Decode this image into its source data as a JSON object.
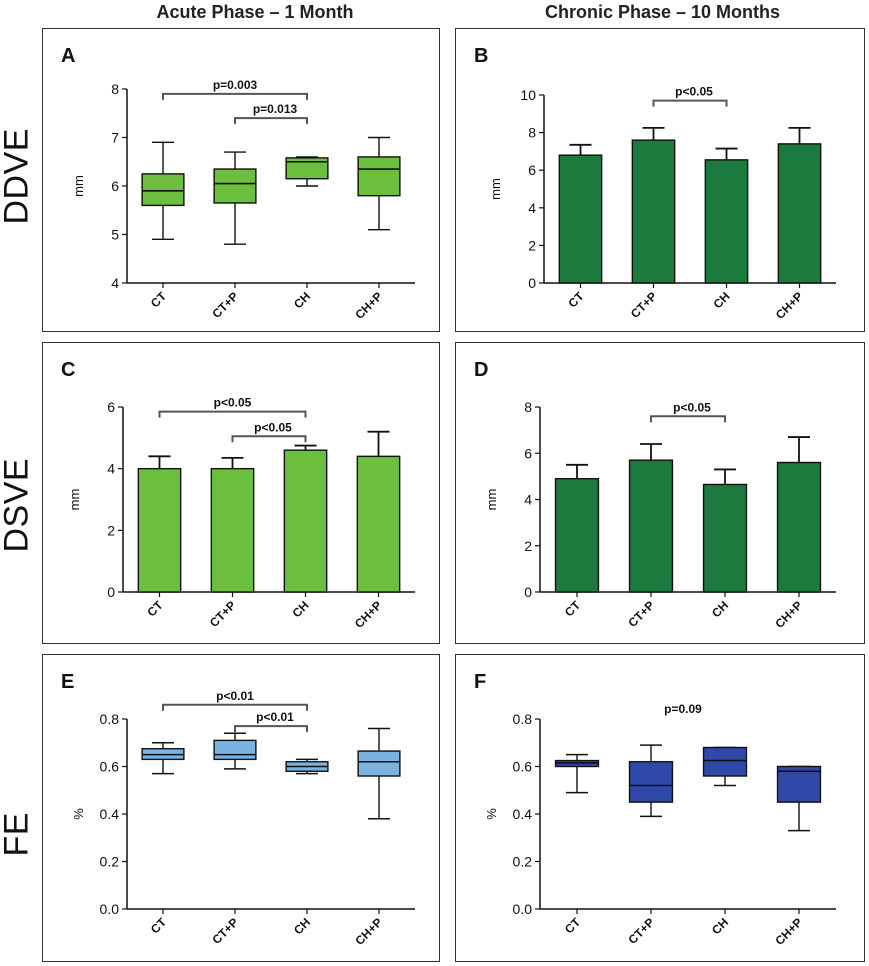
{
  "column_titles": [
    "Acute Phase – 1 Month",
    "Chronic Phase – 10 Months"
  ],
  "row_labels": [
    "DDVE",
    "DSVE",
    "FE"
  ],
  "colors": {
    "light_green": "#6cbf3c",
    "dark_green": "#1d7a3e",
    "light_blue": "#7ab3e0",
    "dark_blue": "#2e49a8",
    "axis": "#111111",
    "bracket": "#555555"
  },
  "chart_data": [
    {
      "panel": "A",
      "type": "box",
      "ylabel": "mm",
      "ylim": [
        4,
        8
      ],
      "yticks": [
        4,
        5,
        6,
        7,
        8
      ],
      "categories": [
        "CT",
        "CT+P",
        "CH",
        "CH+P"
      ],
      "color": "light_green",
      "boxes": [
        {
          "min": 4.9,
          "q1": 5.6,
          "median": 5.9,
          "q3": 6.25,
          "max": 6.9
        },
        {
          "min": 4.8,
          "q1": 5.65,
          "median": 6.05,
          "q3": 6.35,
          "max": 6.7
        },
        {
          "min": 6.0,
          "q1": 6.15,
          "median": 6.5,
          "q3": 6.58,
          "max": 6.6
        },
        {
          "min": 5.1,
          "q1": 5.8,
          "median": 6.35,
          "q3": 6.6,
          "max": 7.0
        }
      ],
      "brackets": [
        {
          "from": 0,
          "to": 2,
          "label": "p=0.003",
          "y": 7.9
        },
        {
          "from": 1,
          "to": 2,
          "label": "p=0.013",
          "y": 7.4
        }
      ]
    },
    {
      "panel": "B",
      "type": "bar",
      "ylabel": "mm",
      "ylim": [
        0,
        10
      ],
      "yticks": [
        0,
        2,
        4,
        6,
        8,
        10
      ],
      "categories": [
        "CT",
        "CT+P",
        "CH",
        "CH+P"
      ],
      "color": "dark_green",
      "values": [
        6.8,
        7.6,
        6.55,
        7.4
      ],
      "errors": [
        0.55,
        0.65,
        0.6,
        0.85
      ],
      "brackets": [
        {
          "from": 1,
          "to": 2,
          "label": "p<0.05",
          "y": 9.7
        }
      ]
    },
    {
      "panel": "C",
      "type": "bar",
      "ylabel": "mm",
      "ylim": [
        0,
        6
      ],
      "yticks": [
        0,
        2,
        4,
        6
      ],
      "categories": [
        "CT",
        "CT+P",
        "CH",
        "CH+P"
      ],
      "color": "light_green",
      "values": [
        4.0,
        4.0,
        4.6,
        4.4
      ],
      "errors": [
        0.4,
        0.35,
        0.15,
        0.8
      ],
      "brackets": [
        {
          "from": 0,
          "to": 2,
          "label": "p<0.05",
          "y": 5.85
        },
        {
          "from": 1,
          "to": 2,
          "label": "p<0.05",
          "y": 5.05
        }
      ]
    },
    {
      "panel": "D",
      "type": "bar",
      "ylabel": "mm",
      "ylim": [
        0,
        8
      ],
      "yticks": [
        0,
        2,
        4,
        6,
        8
      ],
      "categories": [
        "CT",
        "CT+P",
        "CH",
        "CH+P"
      ],
      "color": "dark_green",
      "values": [
        4.9,
        5.7,
        4.65,
        5.6
      ],
      "errors": [
        0.6,
        0.7,
        0.65,
        1.1
      ],
      "brackets": [
        {
          "from": 1,
          "to": 2,
          "label": "p<0.05",
          "y": 7.6
        }
      ]
    },
    {
      "panel": "E",
      "type": "box",
      "ylabel": "%",
      "ylim": [
        0,
        0.8
      ],
      "yticks": [
        0.0,
        0.2,
        0.4,
        0.6,
        0.8
      ],
      "categories": [
        "CT",
        "CT+P",
        "CH",
        "CH+P"
      ],
      "color": "light_blue",
      "boxes": [
        {
          "min": 0.57,
          "q1": 0.63,
          "median": 0.65,
          "q3": 0.675,
          "max": 0.7
        },
        {
          "min": 0.59,
          "q1": 0.63,
          "median": 0.65,
          "q3": 0.71,
          "max": 0.74
        },
        {
          "min": 0.57,
          "q1": 0.58,
          "median": 0.6,
          "q3": 0.62,
          "max": 0.63
        },
        {
          "min": 0.38,
          "q1": 0.56,
          "median": 0.62,
          "q3": 0.665,
          "max": 0.76
        }
      ],
      "brackets": [
        {
          "from": 0,
          "to": 2,
          "label": "p<0.01",
          "y": 0.86
        },
        {
          "from": 1,
          "to": 2,
          "label": "p<0.01",
          "y": 0.77
        }
      ]
    },
    {
      "panel": "F",
      "type": "box",
      "ylabel": "%",
      "ylim": [
        0,
        0.8
      ],
      "yticks": [
        0.0,
        0.2,
        0.4,
        0.6,
        0.8
      ],
      "categories": [
        "CT",
        "CT+P",
        "CH",
        "CH+P"
      ],
      "color": "dark_blue",
      "boxes": [
        {
          "min": 0.49,
          "q1": 0.6,
          "median": 0.615,
          "q3": 0.625,
          "max": 0.65
        },
        {
          "min": 0.39,
          "q1": 0.45,
          "median": 0.52,
          "q3": 0.62,
          "max": 0.69
        },
        {
          "min": 0.52,
          "q1": 0.56,
          "median": 0.625,
          "q3": 0.68,
          "max": 0.68
        },
        {
          "min": 0.33,
          "q1": 0.45,
          "median": 0.58,
          "q3": 0.6,
          "max": 0.6
        }
      ],
      "annotation": "p=0.09"
    }
  ]
}
